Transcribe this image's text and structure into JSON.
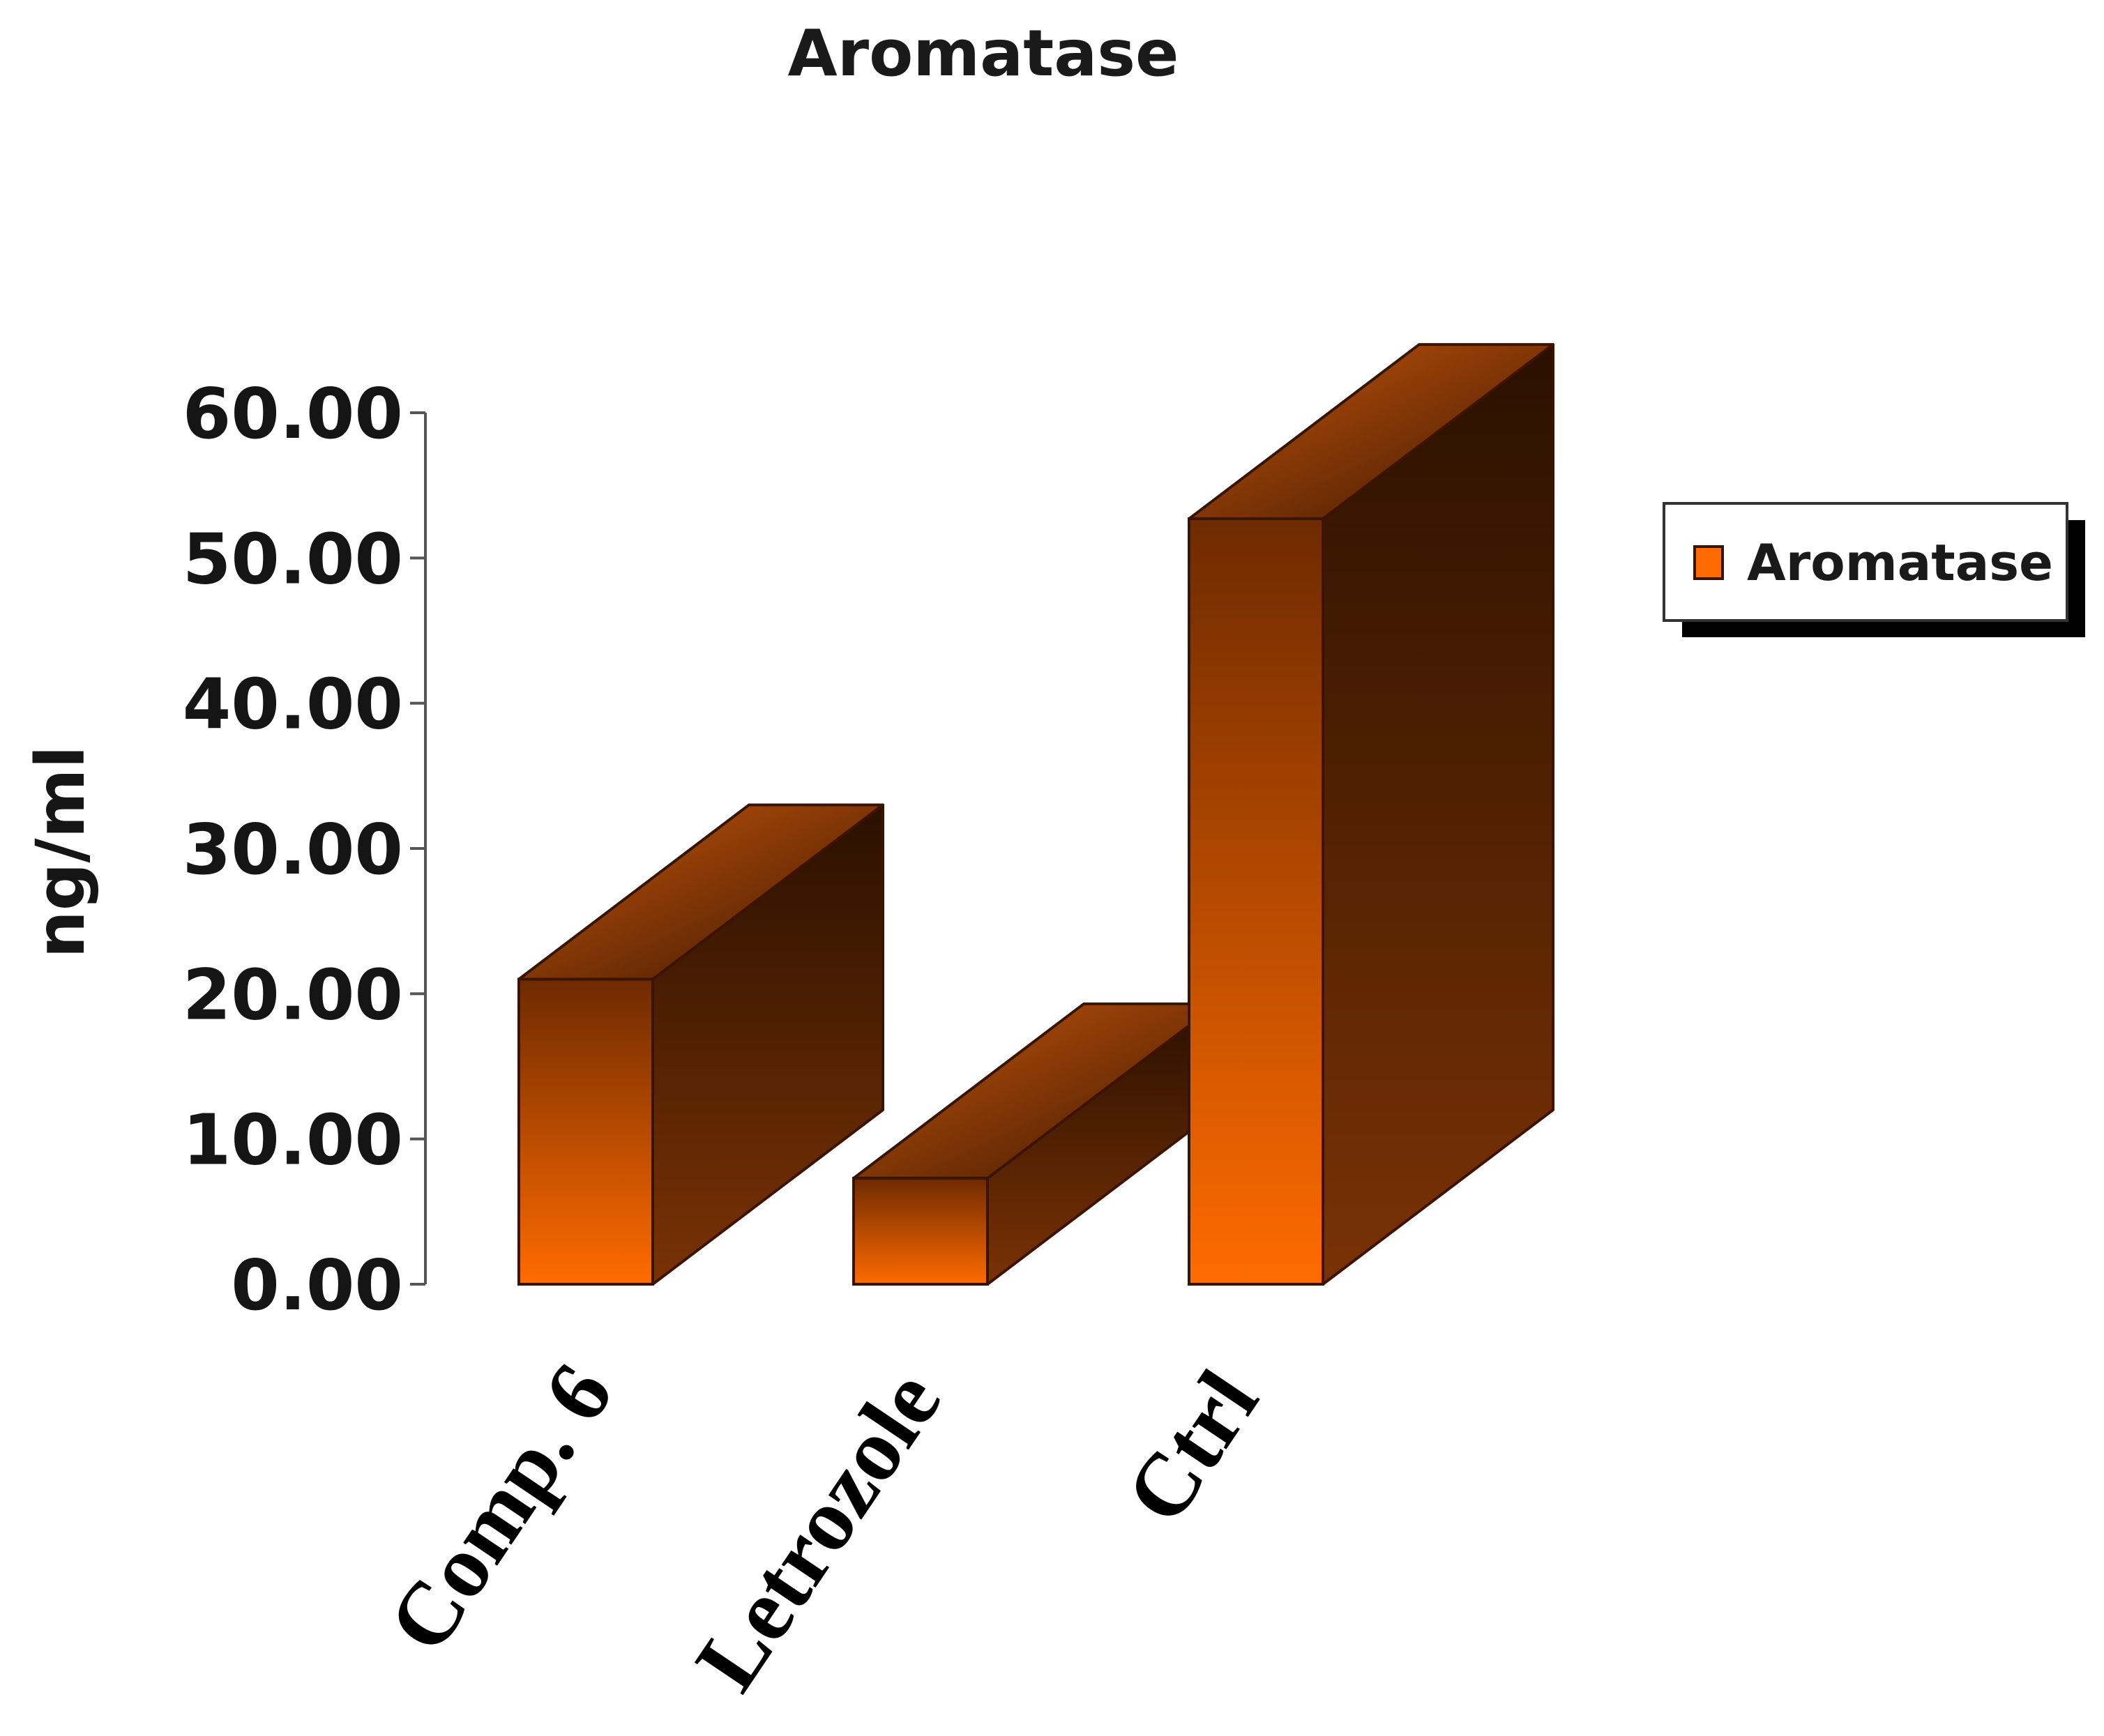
{
  "chart_data": {
    "type": "bar",
    "style": "3d",
    "title": "Aromatase",
    "ylabel": "ng/ml",
    "xlabel": "",
    "categories": [
      "Comp. 6",
      "Letrozole",
      "Ctrl"
    ],
    "series": [
      {
        "name": "Aromatase",
        "values": [
          21.0,
          7.3,
          52.7
        ]
      }
    ],
    "ylim": [
      0,
      60
    ],
    "yticks": [
      "0.00",
      "10.00",
      "20.00",
      "30.00",
      "40.00",
      "50.00",
      "60.00"
    ],
    "grid": false,
    "legend": "right",
    "colors": {
      "front_light": "#ff6b00",
      "front_dark": "#6e2a00",
      "top_light": "#c8560c",
      "top_dark": "#3a1600",
      "side_light": "#7a3205",
      "side_dark": "#2a1000",
      "outline": "#3a1400"
    }
  }
}
